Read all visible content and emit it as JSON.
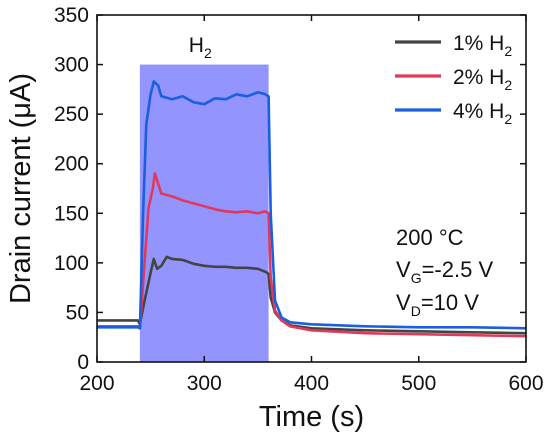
{
  "chart_data": {
    "type": "line",
    "xlabel": "Time (s)",
    "ylabel": "Drain current (μA)",
    "xlim": [
      200,
      600
    ],
    "ylim": [
      0,
      350
    ],
    "xticks": [
      200,
      300,
      400,
      500,
      600
    ],
    "yticks": [
      0,
      50,
      100,
      150,
      200,
      250,
      300,
      350
    ],
    "grid": false,
    "legend_position": "top-right",
    "shaded_region": {
      "x": [
        240,
        360
      ],
      "y": [
        0,
        300
      ],
      "label_base": "H",
      "label_sub": "2",
      "color": "#6b6bff"
    },
    "series": [
      {
        "name_base": "1% H",
        "name_sub": "2",
        "color": "#444444",
        "points": [
          [
            200,
            42
          ],
          [
            238,
            42
          ],
          [
            240,
            38
          ],
          [
            244,
            60
          ],
          [
            250,
            90
          ],
          [
            253,
            104
          ],
          [
            256,
            94
          ],
          [
            260,
            97
          ],
          [
            265,
            106
          ],
          [
            270,
            104
          ],
          [
            280,
            103
          ],
          [
            290,
            99
          ],
          [
            300,
            97
          ],
          [
            310,
            96
          ],
          [
            320,
            96
          ],
          [
            330,
            95
          ],
          [
            340,
            95
          ],
          [
            350,
            94
          ],
          [
            357,
            91
          ],
          [
            360,
            89
          ],
          [
            362,
            65
          ],
          [
            366,
            50
          ],
          [
            372,
            42
          ],
          [
            380,
            37
          ],
          [
            400,
            34
          ],
          [
            450,
            32
          ],
          [
            500,
            31
          ],
          [
            550,
            30
          ],
          [
            600,
            29
          ]
        ]
      },
      {
        "name_base": "2% H",
        "name_sub": "2",
        "color": "#e03a5a",
        "points": [
          [
            200,
            36
          ],
          [
            238,
            36
          ],
          [
            240,
            34
          ],
          [
            244,
            95
          ],
          [
            248,
            155
          ],
          [
            252,
            175
          ],
          [
            254,
            190
          ],
          [
            257,
            180
          ],
          [
            260,
            170
          ],
          [
            270,
            167
          ],
          [
            280,
            163
          ],
          [
            290,
            160
          ],
          [
            300,
            157
          ],
          [
            310,
            154
          ],
          [
            320,
            152
          ],
          [
            330,
            151
          ],
          [
            340,
            152
          ],
          [
            350,
            150
          ],
          [
            357,
            152
          ],
          [
            360,
            150
          ],
          [
            362,
            85
          ],
          [
            366,
            52
          ],
          [
            372,
            42
          ],
          [
            380,
            36
          ],
          [
            400,
            32
          ],
          [
            450,
            29
          ],
          [
            500,
            28
          ],
          [
            550,
            27
          ],
          [
            600,
            26
          ]
        ]
      },
      {
        "name_base": "4% H",
        "name_sub": "2",
        "color": "#1a5fe0",
        "points": [
          [
            200,
            35
          ],
          [
            238,
            35
          ],
          [
            240,
            34
          ],
          [
            243,
            150
          ],
          [
            246,
            240
          ],
          [
            250,
            270
          ],
          [
            253,
            283
          ],
          [
            257,
            279
          ],
          [
            260,
            268
          ],
          [
            270,
            265
          ],
          [
            280,
            268
          ],
          [
            290,
            262
          ],
          [
            300,
            260
          ],
          [
            310,
            266
          ],
          [
            320,
            265
          ],
          [
            330,
            270
          ],
          [
            340,
            268
          ],
          [
            350,
            272
          ],
          [
            357,
            270
          ],
          [
            360,
            268
          ],
          [
            362,
            150
          ],
          [
            366,
            62
          ],
          [
            372,
            45
          ],
          [
            380,
            40
          ],
          [
            400,
            38
          ],
          [
            450,
            36
          ],
          [
            500,
            35
          ],
          [
            550,
            35
          ],
          [
            600,
            34
          ]
        ]
      }
    ],
    "annotations": {
      "temperature": "200 °C",
      "vg_base": "V",
      "vg_sub": "G",
      "vg_value": "=-2.5 V",
      "vd_base": "V",
      "vd_sub": "D",
      "vd_value": "=10 V"
    }
  }
}
